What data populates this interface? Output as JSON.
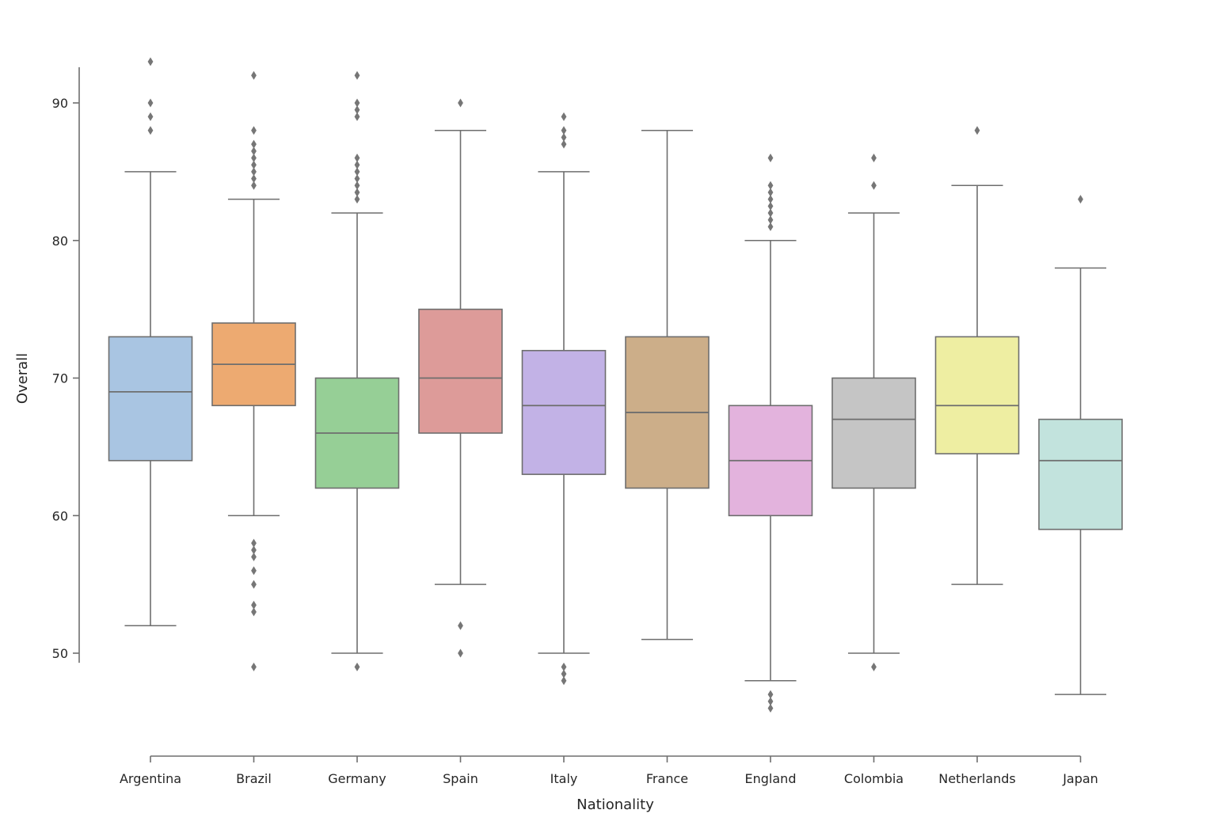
{
  "chart_data": {
    "type": "box",
    "title": "",
    "xlabel": "Nationality",
    "ylabel": "Overall",
    "ylim": [
      44,
      95
    ],
    "yticks": [
      50,
      60,
      70,
      80,
      90
    ],
    "grid": false,
    "legend": "none",
    "categories": [
      "Argentina",
      "Brazil",
      "Germany",
      "Spain",
      "Italy",
      "France",
      "England",
      "Colombia",
      "Netherlands",
      "Japan"
    ],
    "colors": [
      "#a9c5e2",
      "#edaa71",
      "#96cf96",
      "#dd9b99",
      "#c2b2e6",
      "#ccae89",
      "#e3b3dd",
      "#c5c5c5",
      "#eeeea2",
      "#c2e3dd"
    ],
    "line_color": "#6e6e6e",
    "flier_color": "#767676",
    "series": [
      {
        "name": "Argentina",
        "whisker_low": 52,
        "q1": 64,
        "median": 69,
        "q3": 73,
        "whisker_high": 85,
        "outliers": [
          88,
          89,
          90,
          93
        ]
      },
      {
        "name": "Brazil",
        "whisker_low": 60,
        "q1": 68,
        "median": 71,
        "q3": 74,
        "whisker_high": 83,
        "outliers": [
          84,
          84.5,
          85,
          85.5,
          86,
          86.5,
          87,
          88,
          92,
          58,
          57.5,
          57,
          56,
          55,
          53.5,
          53,
          49
        ]
      },
      {
        "name": "Germany",
        "whisker_low": 50,
        "q1": 62,
        "median": 66,
        "q3": 70,
        "whisker_high": 82,
        "outliers": [
          83,
          83.5,
          84,
          84.5,
          85,
          85.5,
          86,
          89,
          89.5,
          90,
          92,
          49
        ]
      },
      {
        "name": "Spain",
        "whisker_low": 55,
        "q1": 66,
        "median": 70,
        "q3": 75,
        "whisker_high": 88,
        "outliers": [
          90,
          52,
          50
        ]
      },
      {
        "name": "Italy",
        "whisker_low": 50,
        "q1": 63,
        "median": 68,
        "q3": 72,
        "whisker_high": 85,
        "outliers": [
          87,
          87.5,
          88,
          89,
          48,
          48.5,
          49
        ]
      },
      {
        "name": "France",
        "whisker_low": 51,
        "q1": 62,
        "median": 67.5,
        "q3": 73,
        "whisker_high": 88,
        "outliers": []
      },
      {
        "name": "England",
        "whisker_low": 48,
        "q1": 60,
        "median": 64,
        "q3": 68,
        "whisker_high": 80,
        "outliers": [
          81,
          81.5,
          82,
          82.5,
          83,
          83.5,
          84,
          86,
          47,
          46.5,
          46
        ]
      },
      {
        "name": "Colombia",
        "whisker_low": 50,
        "q1": 62,
        "median": 67,
        "q3": 70,
        "whisker_high": 82,
        "outliers": [
          84,
          86,
          49
        ]
      },
      {
        "name": "Netherlands",
        "whisker_low": 55,
        "q1": 64.5,
        "median": 68,
        "q3": 73,
        "whisker_high": 84,
        "outliers": [
          88
        ]
      },
      {
        "name": "Japan",
        "whisker_low": 47,
        "q1": 59,
        "median": 64,
        "q3": 67,
        "whisker_high": 78,
        "outliers": [
          83
        ]
      }
    ]
  }
}
